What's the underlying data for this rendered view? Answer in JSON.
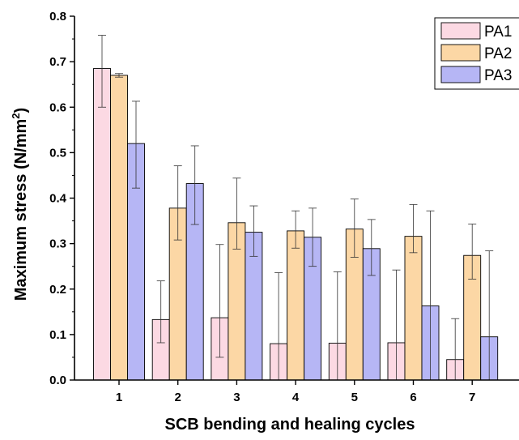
{
  "chart_data": {
    "type": "bar",
    "categories": [
      "1",
      "2",
      "3",
      "4",
      "5",
      "6",
      "7"
    ],
    "series": [
      {
        "name": "PA1",
        "color": "#fcd9e3",
        "values": [
          0.685,
          0.133,
          0.137,
          0.08,
          0.081,
          0.082,
          0.045
        ],
        "err_low": [
          0.6,
          0.082,
          0.05,
          0.0,
          0.0,
          0.0,
          0.0
        ],
        "err_high": [
          0.758,
          0.218,
          0.298,
          0.236,
          0.238,
          0.242,
          0.135
        ]
      },
      {
        "name": "PA2",
        "color": "#fcd7a5",
        "values": [
          0.67,
          0.378,
          0.346,
          0.328,
          0.332,
          0.316,
          0.274
        ],
        "err_low": [
          0.666,
          0.308,
          0.288,
          0.29,
          0.27,
          0.28,
          0.222
        ],
        "err_high": [
          0.674,
          0.471,
          0.444,
          0.372,
          0.398,
          0.386,
          0.343
        ]
      },
      {
        "name": "PA3",
        "color": "#b6b6f5",
        "values": [
          0.52,
          0.432,
          0.325,
          0.314,
          0.289,
          0.163,
          0.095
        ],
        "err_low": [
          0.422,
          0.342,
          0.272,
          0.25,
          0.23,
          0.0,
          0.0
        ],
        "err_high": [
          0.613,
          0.515,
          0.383,
          0.378,
          0.353,
          0.372,
          0.284
        ]
      }
    ],
    "xlabel": "SCB bending and healing cycles",
    "ylabel": "Maximum stress (N/mm",
    "ylabel_superscript": "2",
    "ylabel_suffix": ")",
    "ylim": [
      0.0,
      0.8
    ],
    "yticks": [
      "0.0",
      "0.1",
      "0.2",
      "0.3",
      "0.4",
      "0.5",
      "0.6",
      "0.7",
      "0.8"
    ],
    "legend_position": "top-right",
    "grid": false
  }
}
